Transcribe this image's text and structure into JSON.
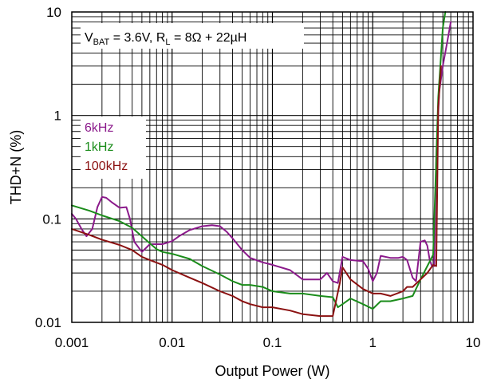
{
  "chart_data": {
    "type": "line",
    "title": "",
    "xlabel": "Output Power (W)",
    "ylabel": "THD+N (%)",
    "x_scale": "log",
    "y_scale": "log",
    "xlim": [
      0.001,
      10
    ],
    "ylim": [
      0.01,
      10
    ],
    "x_ticks": [
      0.001,
      0.01,
      0.1,
      1,
      10
    ],
    "x_tick_labels": [
      "0.001",
      "0.01",
      "0.1",
      "1",
      "10"
    ],
    "y_ticks": [
      0.01,
      0.1,
      1,
      10
    ],
    "y_tick_labels": [
      "0.01",
      "0.1",
      "1",
      "10"
    ],
    "grid": true,
    "legend_position": "left",
    "annotation": {
      "prefix_v": "V",
      "sub_bat": "BAT",
      "mid": " = 3.6V, R",
      "sub_l": "L",
      "suffix": " = 8Ω + 22µH"
    },
    "series": [
      {
        "name": "6kHz",
        "color": "#8b1a8b",
        "points": [
          [
            0.001,
            0.112
          ],
          [
            0.0011,
            0.1
          ],
          [
            0.00125,
            0.08
          ],
          [
            0.0014,
            0.068
          ],
          [
            0.0016,
            0.08
          ],
          [
            0.0018,
            0.13
          ],
          [
            0.002,
            0.163
          ],
          [
            0.0022,
            0.16
          ],
          [
            0.0025,
            0.145
          ],
          [
            0.003,
            0.128
          ],
          [
            0.0035,
            0.13
          ],
          [
            0.0038,
            0.1
          ],
          [
            0.0042,
            0.06
          ],
          [
            0.005,
            0.048
          ],
          [
            0.006,
            0.057
          ],
          [
            0.008,
            0.057
          ],
          [
            0.01,
            0.061
          ],
          [
            0.012,
            0.069
          ],
          [
            0.015,
            0.078
          ],
          [
            0.02,
            0.085
          ],
          [
            0.025,
            0.087
          ],
          [
            0.03,
            0.085
          ],
          [
            0.035,
            0.075
          ],
          [
            0.04,
            0.065
          ],
          [
            0.05,
            0.05
          ],
          [
            0.06,
            0.042
          ],
          [
            0.08,
            0.038
          ],
          [
            0.1,
            0.036
          ],
          [
            0.15,
            0.032
          ],
          [
            0.2,
            0.026
          ],
          [
            0.25,
            0.026
          ],
          [
            0.3,
            0.026
          ],
          [
            0.35,
            0.03
          ],
          [
            0.4,
            0.025
          ],
          [
            0.45,
            0.024
          ],
          [
            0.5,
            0.043
          ],
          [
            0.6,
            0.04
          ],
          [
            0.8,
            0.039
          ],
          [
            0.9,
            0.033
          ],
          [
            1.0,
            0.025
          ],
          [
            1.1,
            0.03
          ],
          [
            1.2,
            0.044
          ],
          [
            1.5,
            0.042
          ],
          [
            1.8,
            0.042
          ],
          [
            2.0,
            0.043
          ],
          [
            2.2,
            0.04
          ],
          [
            2.5,
            0.027
          ],
          [
            2.7,
            0.025
          ],
          [
            3.0,
            0.06
          ],
          [
            3.3,
            0.062
          ],
          [
            3.5,
            0.055
          ],
          [
            3.7,
            0.04
          ],
          [
            3.9,
            0.035
          ],
          [
            4.1,
            0.035
          ],
          [
            4.3,
            0.4
          ],
          [
            4.6,
            1.7
          ],
          [
            5.0,
            3.0
          ],
          [
            5.5,
            5.0
          ],
          [
            6.0,
            8.0
          ]
        ]
      },
      {
        "name": "1kHz",
        "color": "#1a8c1a",
        "points": [
          [
            0.001,
            0.135
          ],
          [
            0.0015,
            0.12
          ],
          [
            0.002,
            0.108
          ],
          [
            0.003,
            0.095
          ],
          [
            0.004,
            0.082
          ],
          [
            0.005,
            0.068
          ],
          [
            0.006,
            0.058
          ],
          [
            0.007,
            0.051
          ],
          [
            0.008,
            0.048
          ],
          [
            0.01,
            0.046
          ],
          [
            0.015,
            0.041
          ],
          [
            0.02,
            0.035
          ],
          [
            0.03,
            0.029
          ],
          [
            0.04,
            0.025
          ],
          [
            0.05,
            0.023
          ],
          [
            0.06,
            0.023
          ],
          [
            0.08,
            0.022
          ],
          [
            0.1,
            0.02
          ],
          [
            0.15,
            0.019
          ],
          [
            0.2,
            0.019
          ],
          [
            0.3,
            0.018
          ],
          [
            0.4,
            0.0175
          ],
          [
            0.45,
            0.014
          ],
          [
            0.5,
            0.015
          ],
          [
            0.6,
            0.017
          ],
          [
            0.8,
            0.015
          ],
          [
            1.0,
            0.0135
          ],
          [
            1.2,
            0.016
          ],
          [
            1.5,
            0.016
          ],
          [
            2.0,
            0.017
          ],
          [
            2.5,
            0.018
          ],
          [
            3.0,
            0.026
          ],
          [
            3.5,
            0.035
          ],
          [
            4.0,
            0.045
          ],
          [
            4.5,
            1.5
          ],
          [
            5.0,
            7.0
          ],
          [
            5.3,
            10.0
          ]
        ]
      },
      {
        "name": "100kHz",
        "color": "#8b1111",
        "points": [
          [
            0.001,
            0.08
          ],
          [
            0.0015,
            0.07
          ],
          [
            0.002,
            0.063
          ],
          [
            0.003,
            0.056
          ],
          [
            0.004,
            0.05
          ],
          [
            0.005,
            0.043
          ],
          [
            0.006,
            0.04
          ],
          [
            0.008,
            0.036
          ],
          [
            0.01,
            0.032
          ],
          [
            0.015,
            0.027
          ],
          [
            0.02,
            0.024
          ],
          [
            0.03,
            0.02
          ],
          [
            0.04,
            0.018
          ],
          [
            0.05,
            0.016
          ],
          [
            0.06,
            0.015
          ],
          [
            0.08,
            0.014
          ],
          [
            0.1,
            0.014
          ],
          [
            0.15,
            0.013
          ],
          [
            0.2,
            0.012
          ],
          [
            0.3,
            0.0115
          ],
          [
            0.4,
            0.0115
          ],
          [
            0.43,
            0.016
          ],
          [
            0.47,
            0.024
          ],
          [
            0.5,
            0.034
          ],
          [
            0.6,
            0.026
          ],
          [
            0.8,
            0.021
          ],
          [
            1.0,
            0.019
          ],
          [
            1.2,
            0.019
          ],
          [
            1.5,
            0.018
          ],
          [
            2.0,
            0.02
          ],
          [
            2.2,
            0.022
          ],
          [
            2.5,
            0.022
          ],
          [
            3.0,
            0.026
          ],
          [
            3.5,
            0.03
          ],
          [
            4.0,
            0.036
          ],
          [
            4.3,
            0.035
          ],
          [
            4.5,
            1.2
          ],
          [
            4.8,
            3.0
          ]
        ]
      }
    ]
  }
}
